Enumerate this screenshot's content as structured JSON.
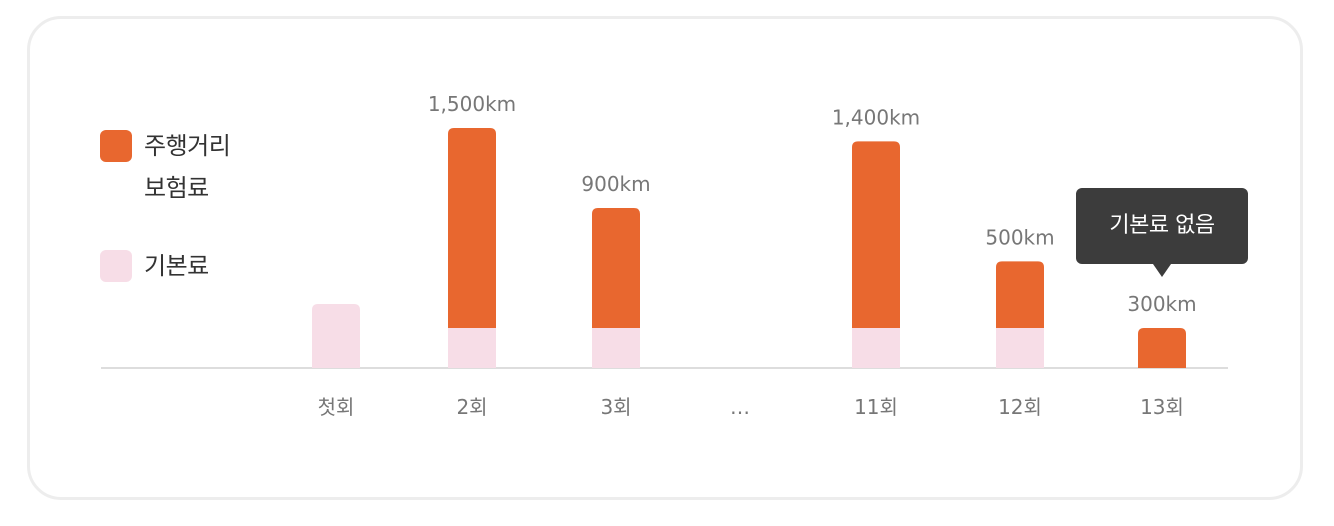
{
  "colors": {
    "distance": "#e8672f",
    "base": "#f7dde7",
    "axis": "#dddddd",
    "label": "#777777",
    "tooltip_bg": "#3c3c3c"
  },
  "legend": {
    "items": [
      {
        "label_line1": "주행거리",
        "label_line2": "보험료",
        "color": "#e8672f"
      },
      {
        "label_line1": "기본료",
        "label_line2": "",
        "color": "#f7dde7"
      }
    ]
  },
  "tooltip": {
    "text": "기본료 없음"
  },
  "chart_data": {
    "type": "bar",
    "stacked": true,
    "categories": [
      "첫회",
      "2회",
      "3회",
      "…",
      "11회",
      "12회",
      "13회"
    ],
    "series": [
      {
        "name": "기본료",
        "color": "#f7dde7",
        "values": [
          1,
          1,
          1,
          null,
          1,
          1,
          0
        ]
      },
      {
        "name": "주행거리 보험료",
        "color": "#e8672f",
        "values": [
          0,
          1500,
          900,
          null,
          1400,
          500,
          300
        ]
      }
    ],
    "data_labels": [
      "",
      "1,500km",
      "900km",
      "",
      "1,400km",
      "500km",
      "300km"
    ],
    "grid": false,
    "legend_position": "left"
  }
}
